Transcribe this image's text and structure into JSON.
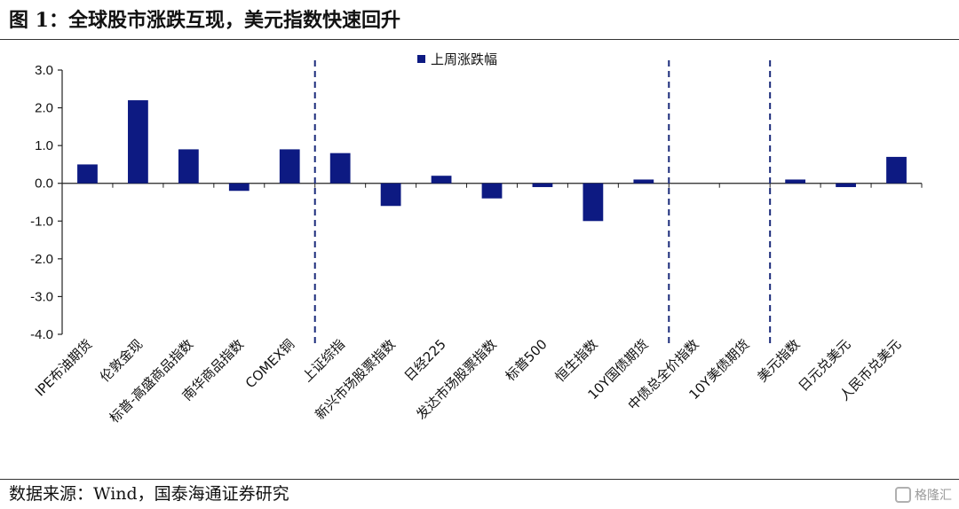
{
  "figure": {
    "title": "图 1：全球股市涨跌互现，美元指数快速回升",
    "source": "数据来源：Wind，国泰海通证券研究",
    "watermark": "格隆汇"
  },
  "chart_data": {
    "type": "bar",
    "title": "",
    "xlabel": "",
    "ylabel": "",
    "ylim": [
      -4.0,
      3.0
    ],
    "yticks": [
      "3.0",
      "2.0",
      "1.0",
      "0.0",
      "-1.0",
      "-2.0",
      "-3.0",
      "-4.0"
    ],
    "ytick_values": [
      3,
      2,
      1,
      0,
      -1,
      -2,
      -3,
      -4
    ],
    "categories": [
      "IPE布油期货",
      "伦敦金现",
      "标普-高盛商品指数",
      "南华商品指数",
      "COMEX铜",
      "上证综指",
      "新兴市场股票指数",
      "日经225",
      "发达市场股票指数",
      "标普500",
      "恒生指数",
      "10Y国债期货",
      "中债总全价指数",
      "10Y美债期货",
      "美元指数",
      "日元兑美元",
      "人民币兑美元"
    ],
    "series": [
      {
        "name": "上周涨跌幅",
        "color": "#0d1a82",
        "values": [
          0.5,
          2.2,
          0.9,
          -0.2,
          0.9,
          0.8,
          -0.6,
          0.2,
          -0.4,
          -0.1,
          -1.0,
          0.1,
          0.0,
          0.0,
          0.1,
          -0.1,
          0.7
        ]
      }
    ],
    "group_separators_after": [
      "COMEX铜",
      "10Y国债期货",
      "10Y美债期货"
    ],
    "legend": {
      "placement": "top-center"
    },
    "grid": false
  }
}
